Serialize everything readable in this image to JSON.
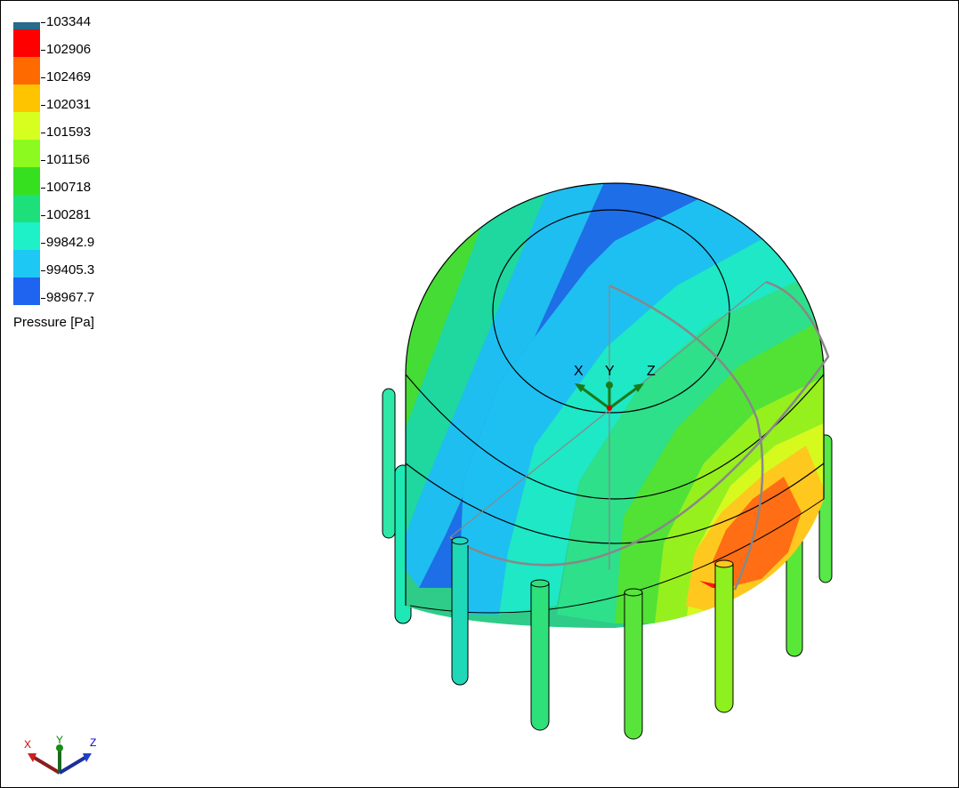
{
  "legend": {
    "title": "Pressure [Pa]",
    "ticks": [
      "103344",
      "102906",
      "102469",
      "102031",
      "101593",
      "101156",
      "100718",
      "100281",
      "99842.9",
      "99405.3",
      "98967.7"
    ],
    "colors": [
      "#ff0000",
      "#ff6a00",
      "#ffc400",
      "#d6ff1f",
      "#8cfa1e",
      "#36e01e",
      "#1ee07a",
      "#1ef0c8",
      "#1ec8f5",
      "#1e64f0",
      "#0000ff"
    ]
  },
  "scene": {
    "axis_labels": {
      "x": "X",
      "y": "Y",
      "z": "Z"
    }
  },
  "triad": {
    "axis_labels": {
      "x": "X",
      "y": "Y",
      "z": "Z"
    }
  }
}
